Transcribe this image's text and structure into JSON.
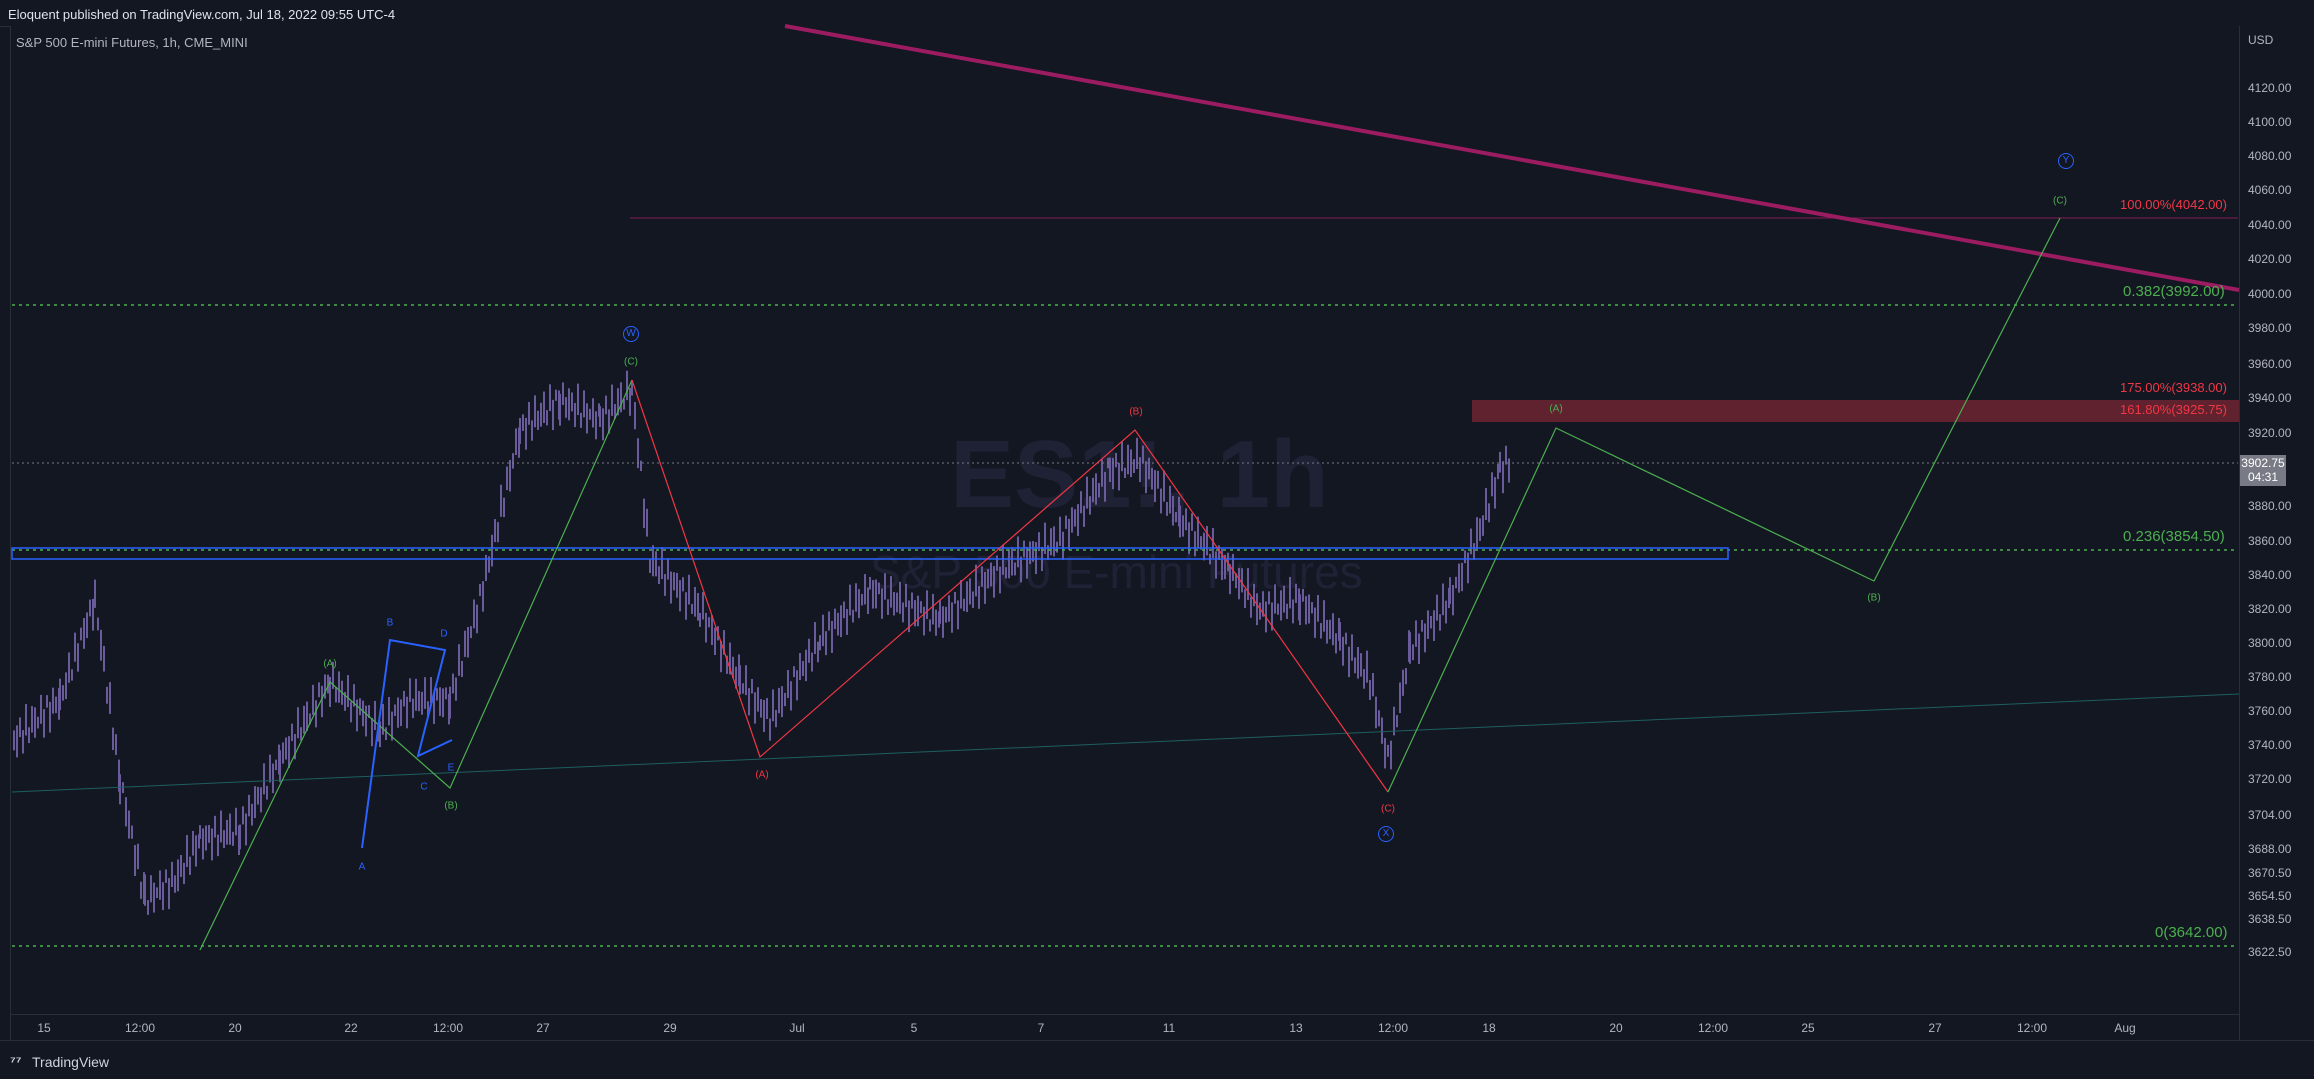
{
  "header": {
    "publish_text": "Eloquent published on TradingView.com, Jul 18, 2022 09:55 UTC-4"
  },
  "symbol": {
    "title": "S&P 500 E-mini Futures, 1h, CME_MINI"
  },
  "watermark": {
    "ticker": "ES1!, 1h",
    "name": "S&P 500 E-mini Futures"
  },
  "price_axis": {
    "currency": "USD",
    "labels": [
      "4120.00",
      "4100.00",
      "4080.00",
      "4060.00",
      "4040.00",
      "4020.00",
      "4000.00",
      "3980.00",
      "3960.00",
      "3940.00",
      "3920.00",
      "3880.00",
      "3860.00",
      "3840.00",
      "3820.00",
      "3800.00",
      "3780.00",
      "3760.00",
      "3740.00",
      "3720.00",
      "3704.00",
      "3688.00",
      "3670.50",
      "3654.50",
      "3638.50",
      "3622.50"
    ],
    "current_price": "3902.75",
    "countdown": "04:31"
  },
  "time_axis": {
    "labels": [
      "15",
      "12:00",
      "20",
      "22",
      "12:00",
      "27",
      "29",
      "Jul",
      "5",
      "7",
      "11",
      "13",
      "12:00",
      "18",
      "20",
      "12:00",
      "25",
      "27",
      "12:00",
      "Aug"
    ]
  },
  "fib_levels": {
    "f100": "100.00%(4042.00)",
    "f0382": "0.382(3992.00)",
    "f175": "175.00%(3938.00)",
    "f1618": "161.80%(3925.75)",
    "f0236": "0.236(3854.50)",
    "f0": "0(3642.00)"
  },
  "waves": {
    "green_A1": "(A)",
    "green_B1": "(B)",
    "green_C1": "(C)",
    "red_A": "(A)",
    "red_B": "(B)",
    "red_C": "(C)",
    "green_A2": "(A)",
    "green_B2": "(B)",
    "green_C2": "(C)",
    "blue_A": "A",
    "blue_B": "B",
    "blue_C": "C",
    "blue_D": "D",
    "blue_E": "E",
    "W": "W",
    "X": "X",
    "Y": "Y"
  },
  "footer": {
    "brand": "TradingView"
  },
  "colors": {
    "background": "#131722",
    "green": "#4caf50",
    "red": "#f23645",
    "blue": "#2962ff",
    "trend": "#9c1c62",
    "candle": "#6a5b9a"
  }
}
